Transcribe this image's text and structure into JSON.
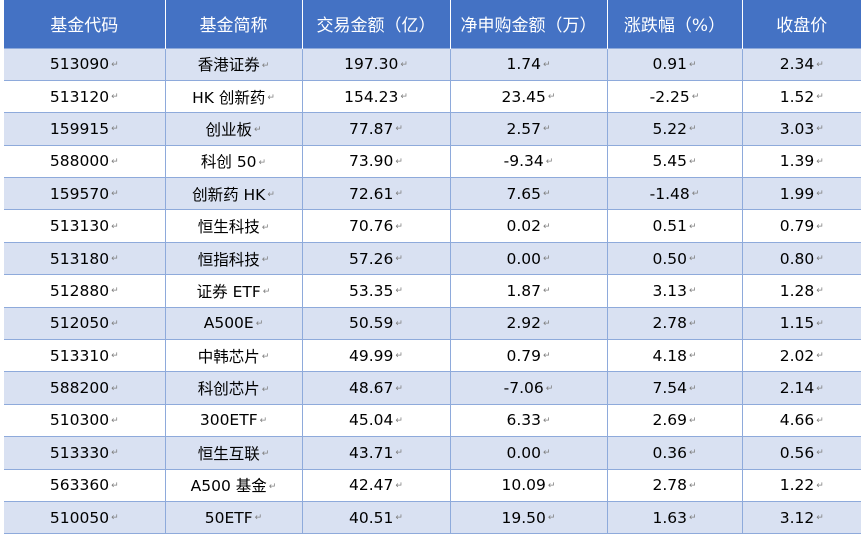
{
  "table": {
    "headers": [
      "基金代码",
      "基金简称",
      "交易金额（亿）",
      "净申购金额（万）",
      "涨跌幅（%）",
      "收盘价"
    ],
    "paragraph_mark": "↵",
    "rows": [
      [
        "513090",
        "香港证券",
        "197.30",
        "1.74",
        "0.91",
        "2.34"
      ],
      [
        "513120",
        "HK 创新药",
        "154.23",
        "23.45",
        "-2.25",
        "1.52"
      ],
      [
        "159915",
        "创业板",
        "77.87",
        "2.57",
        "5.22",
        "3.03"
      ],
      [
        "588000",
        "科创 50",
        "73.90",
        "-9.34",
        "5.45",
        "1.39"
      ],
      [
        "159570",
        "创新药 HK",
        "72.61",
        "7.65",
        "-1.48",
        "1.99"
      ],
      [
        "513130",
        "恒生科技",
        "70.76",
        "0.02",
        "0.51",
        "0.79"
      ],
      [
        "513180",
        "恒指科技",
        "57.26",
        "0.00",
        "0.50",
        "0.80"
      ],
      [
        "512880",
        "证券 ETF",
        "53.35",
        "1.87",
        "3.13",
        "1.28"
      ],
      [
        "512050",
        "A500E",
        "50.59",
        "2.92",
        "2.78",
        "1.15"
      ],
      [
        "513310",
        "中韩芯片",
        "49.99",
        "0.79",
        "4.18",
        "2.02"
      ],
      [
        "588200",
        "科创芯片",
        "48.67",
        "-7.06",
        "7.54",
        "2.14"
      ],
      [
        "510300",
        "300ETF",
        "45.04",
        "6.33",
        "2.69",
        "4.66"
      ],
      [
        "513330",
        "恒生互联",
        "43.71",
        "0.00",
        "0.36",
        "0.56"
      ],
      [
        "563360",
        "A500 基金",
        "42.47",
        "10.09",
        "2.78",
        "1.22"
      ],
      [
        "510050",
        "50ETF",
        "40.51",
        "19.50",
        "1.63",
        "3.12"
      ]
    ]
  },
  "colors": {
    "header_bg": "#4472c4",
    "header_text": "#ffffff",
    "band_row": "#d9e1f2",
    "plain_row": "#ffffff",
    "grid_line": "#8eaadb"
  }
}
